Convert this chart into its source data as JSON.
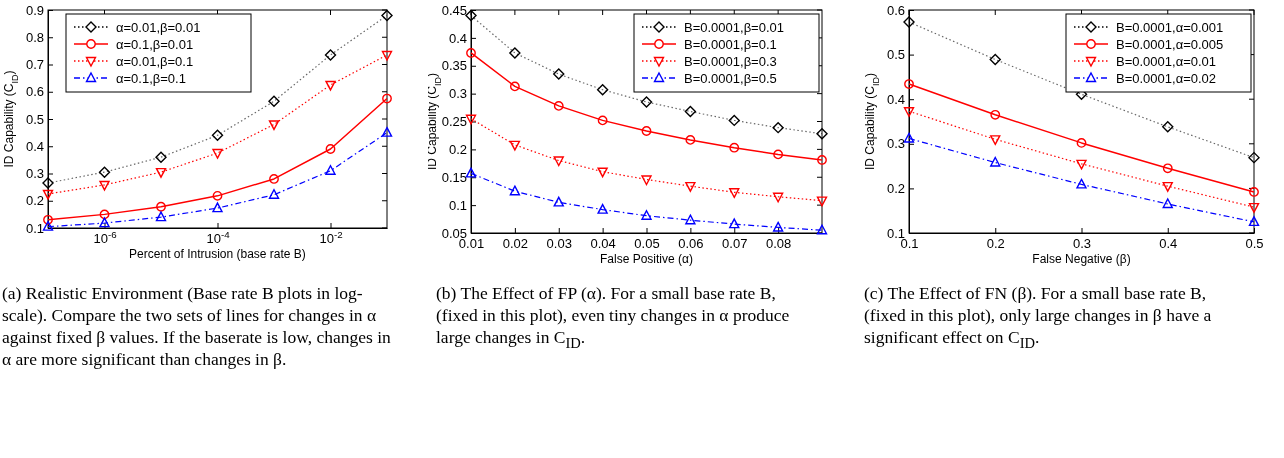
{
  "chart_data": [
    {
      "type": "line",
      "log": "x",
      "xlabel": "Percent of Intrusion (base rate B)",
      "ylabel": "ID Capability (C$_{ID}$)",
      "x": [
        1e-07,
        1e-06,
        1e-05,
        0.0001,
        0.001,
        0.01,
        0.1
      ],
      "xlim": [
        1e-07,
        0.1
      ],
      "xticks": [
        {
          "value": 1e-06,
          "label": "10$^{-6}$"
        },
        {
          "value": 0.0001,
          "label": "10$^{-4}$"
        },
        {
          "value": 0.01,
          "label": "10$^{-2}$"
        }
      ],
      "ylim": [
        0.1,
        0.9
      ],
      "yticks": [
        0.1,
        0.2,
        0.3,
        0.4,
        0.5,
        0.6,
        0.7,
        0.8,
        0.9
      ],
      "grid": false,
      "legend": "top left",
      "series": [
        {
          "name": "α=0.01,β=0.01",
          "color": "#000000",
          "marker": "diamond",
          "line_style": "dotted",
          "values": [
            0.265,
            0.305,
            0.36,
            0.44,
            0.565,
            0.735,
            0.88
          ]
        },
        {
          "name": "α=0.1,β=0.01",
          "color": "#ff0000",
          "marker": "circle",
          "line_style": "solid",
          "values": [
            0.13,
            0.15,
            0.178,
            0.218,
            0.28,
            0.39,
            0.575
          ]
        },
        {
          "name": "α=0.01,β=0.1",
          "color": "#ff0000",
          "marker": "triangle-down",
          "line_style": "dotted",
          "values": [
            0.225,
            0.258,
            0.305,
            0.375,
            0.48,
            0.625,
            0.735
          ]
        },
        {
          "name": "α=0.1,β=0.1",
          "color": "#0000ff",
          "marker": "triangle",
          "line_style": "dashed",
          "values": [
            0.105,
            0.118,
            0.14,
            0.173,
            0.222,
            0.31,
            0.45
          ]
        }
      ],
      "annotations": [
        "(a) Realistic Environment (Base rate B plots in log-scale). Compare the two sets of lines for changes in α against fixed β values. If the baserate is low, changes in α are more significant than changes in β."
      ]
    },
    {
      "type": "line",
      "xlabel": "False Positive (α)",
      "ylabel": "ID Capability (C$_{ID}$)",
      "x": [
        0.01,
        0.02,
        0.03,
        0.04,
        0.05,
        0.06,
        0.07,
        0.08,
        0.09
      ],
      "xlim": [
        0.01,
        0.09
      ],
      "xticks": [
        0.01,
        0.02,
        0.03,
        0.04,
        0.05,
        0.06,
        0.07,
        0.08
      ],
      "ylim": [
        0.05,
        0.45
      ],
      "yticks": [
        0.05,
        0.1,
        0.15,
        0.2,
        0.25,
        0.3,
        0.35,
        0.4,
        0.45
      ],
      "grid": false,
      "legend": "top right",
      "series": [
        {
          "name": "B=0.0001,β=0.01",
          "color": "#000000",
          "marker": "diamond",
          "line_style": "dotted",
          "values": [
            0.44,
            0.373,
            0.335,
            0.307,
            0.285,
            0.268,
            0.252,
            0.239,
            0.228
          ]
        },
        {
          "name": "B=0.0001,β=0.1",
          "color": "#ff0000",
          "marker": "circle",
          "line_style": "solid",
          "values": [
            0.373,
            0.313,
            0.278,
            0.252,
            0.233,
            0.217,
            0.203,
            0.191,
            0.181
          ]
        },
        {
          "name": "B=0.0001,β=0.3",
          "color": "#ff0000",
          "marker": "triangle-down",
          "line_style": "dotted",
          "values": [
            0.255,
            0.208,
            0.18,
            0.16,
            0.146,
            0.134,
            0.123,
            0.115,
            0.108
          ]
        },
        {
          "name": "B=0.0001,β=0.5",
          "color": "#0000ff",
          "marker": "triangle",
          "line_style": "dashed",
          "values": [
            0.157,
            0.125,
            0.105,
            0.092,
            0.081,
            0.073,
            0.066,
            0.06,
            0.055
          ]
        }
      ],
      "annotations": [
        "(b) The Effect of FP (α). For a small base rate B, (fixed in this plot), even tiny changes in α produce large changes in C$_{ID}$."
      ]
    },
    {
      "type": "line",
      "xlabel": "False Negative (β)",
      "ylabel": "ID Capability (C$_{ID}$)",
      "x": [
        0.1,
        0.2,
        0.3,
        0.4,
        0.5
      ],
      "xlim": [
        0.1,
        0.5
      ],
      "xticks": [
        0.1,
        0.2,
        0.3,
        0.4,
        0.5
      ],
      "ylim": [
        0.1,
        0.6
      ],
      "yticks": [
        0.1,
        0.2,
        0.3,
        0.4,
        0.5,
        0.6
      ],
      "grid": false,
      "legend": "top right",
      "series": [
        {
          "name": "B=0.0001,α=0.001",
          "color": "#000000",
          "marker": "diamond",
          "line_style": "dotted",
          "values": [
            0.573,
            0.489,
            0.411,
            0.338,
            0.269
          ]
        },
        {
          "name": "B=0.0001,α=0.005",
          "color": "#ff0000",
          "marker": "circle",
          "line_style": "solid",
          "values": [
            0.434,
            0.365,
            0.302,
            0.245,
            0.192
          ]
        },
        {
          "name": "B=0.0001,α=0.01",
          "color": "#ff0000",
          "marker": "triangle-down",
          "line_style": "dotted",
          "values": [
            0.373,
            0.31,
            0.255,
            0.205,
            0.158
          ]
        },
        {
          "name": "B=0.0001,α=0.02",
          "color": "#0000ff",
          "marker": "triangle",
          "line_style": "dashed",
          "values": [
            0.312,
            0.258,
            0.209,
            0.165,
            0.125
          ]
        }
      ],
      "annotations": [
        "(c) The Effect of FN (β). For a small base rate B, (fixed in this plot), only large changes in β have a significant effect on C$_{ID}$."
      ]
    }
  ]
}
